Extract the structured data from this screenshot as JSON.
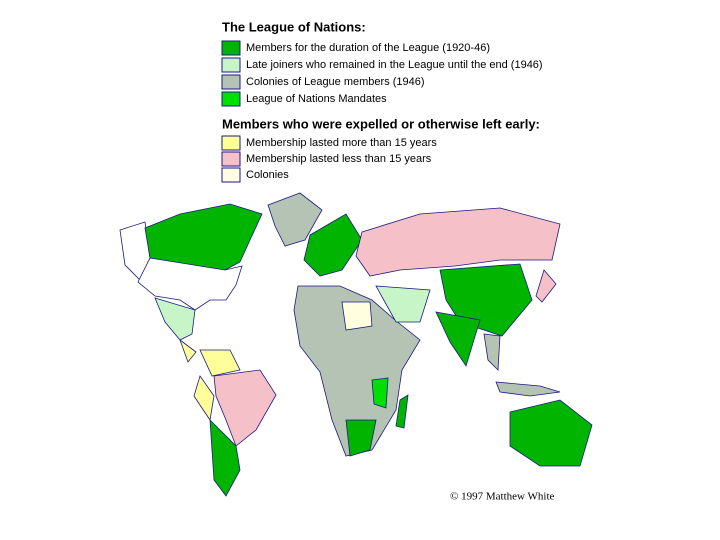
{
  "header": {
    "title": "The League of Nations:"
  },
  "legend": [
    {
      "label": "Members for the duration of the League (1920-46)",
      "color": "#00b400"
    },
    {
      "label": "Late joiners who remained in the League until the end (1946)",
      "color": "#c8f5c8"
    },
    {
      "label": "Colonies of League members (1946)",
      "color": "#b4c3b4"
    },
    {
      "label": "League of Nations Mandates",
      "color": "#00e000"
    }
  ],
  "subheader": {
    "title": "Members who were expelled or otherwise left early:"
  },
  "legend_early": [
    {
      "label": "Membership lasted more than 15 years",
      "color": "#ffff99"
    },
    {
      "label": "Membership lasted less than 15 years",
      "color": "#f5c0c8"
    },
    {
      "label": "Colonies",
      "color": "#ffffe0"
    }
  ],
  "credit": "© 1997 Matthew White"
}
